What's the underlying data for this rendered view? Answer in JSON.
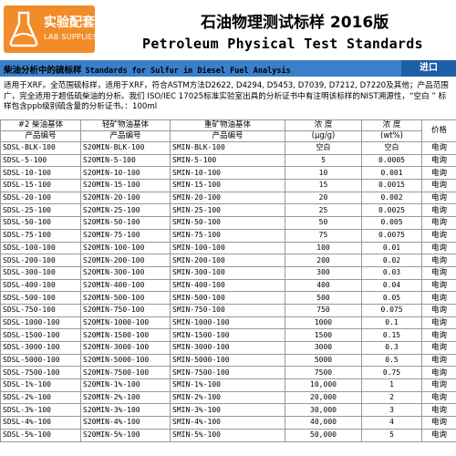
{
  "brand": {
    "name_cn": "实验配套",
    "name_en": "LAB SUPPLIES",
    "color": "#f28c28"
  },
  "header": {
    "title_cn": "石油物理测试标样 2016版",
    "title_en": "Petroleum Physical Test Standards"
  },
  "section": {
    "title_cn": "柴油分析中的硫标样",
    "title_en": "Standards for Sulfur in Diesel Fuel Analysis",
    "import_label": "进口",
    "bar_color": "#3a7fc9"
  },
  "description": "适用于XRF。全范围硫标样，适用于XRF，符合ASTM方法D2622, D4294, D5453, D7039, D7212, D7220及其他；产品范围广，完全适用于超低硫柴油的分析。我们 ISO/IEC 17025标准实验室出具的分析证书中有注明该标样的NIST溯源性，“空白 ” 标样包含ppb级别硫含量的分析证书。：100ml",
  "table": {
    "headers": {
      "col1_top": "#2 柴油基体",
      "col1_sub": "产品编号",
      "col2_top": "轻矿物油基体",
      "col2_sub": "产品编号",
      "col3_top": "重矿物油基体",
      "col3_sub": "产品编号",
      "col4_top": "浓 度",
      "col4_sub": "(μg/g)",
      "col5_top": "浓 度",
      "col5_sub": "(wt%)",
      "col6": "价格"
    },
    "rows": [
      [
        "SDSL-BLK-100",
        "S20MIN-BLK-100",
        "SMIN-BLK-100",
        "空白",
        "空白",
        "电询"
      ],
      [
        "SDSL-5-100",
        "S20MIN-5-100",
        "SMIN-5-100",
        "5",
        "0.0005",
        "电询"
      ],
      [
        "SDSL-10-100",
        "S20MIN-10-100",
        "SMIN-10-100",
        "10",
        "0.001",
        "电询"
      ],
      [
        "SDSL-15-100",
        "S20MIN-15-100",
        "SMIN-15-100",
        "15",
        "0.0015",
        "电询"
      ],
      [
        "SDSL-20-100",
        "S20MIN-20-100",
        "SMIN-20-100",
        "20",
        "0.002",
        "电询"
      ],
      [
        "SDSL-25-100",
        "S20MIN-25-100",
        "SMIN-25-100",
        "25",
        "0.0025",
        "电询"
      ],
      [
        "SDSL-50-100",
        "S20MIN-50-100",
        "SMIN-50-100",
        "50",
        "0.005",
        "电询"
      ],
      [
        "SDSL-75-100",
        "S20MIN-75-100",
        "SMIN-75-100",
        "75",
        "0.0075",
        "电询"
      ],
      [
        "SDSL-100-100",
        "S20MIN-100-100",
        "SMIN-100-100",
        "100",
        "0.01",
        "电询"
      ],
      [
        "SDSL-200-100",
        "S20MIN-200-100",
        "SMIN-200-100",
        "200",
        "0.02",
        "电询"
      ],
      [
        "SDSL-300-100",
        "S20MIN-300-100",
        "SMIN-300-100",
        "300",
        "0.03",
        "电询"
      ],
      [
        "SDSL-400-100",
        "S20MIN-400-100",
        "SMIN-400-100",
        "400",
        "0.04",
        "电询"
      ],
      [
        "SDSL-500-100",
        "S20MIN-500-100",
        "SMIN-500-100",
        "500",
        "0.05",
        "电询"
      ],
      [
        "SDSL-750-100",
        "S20MIN-750-100",
        "SMIN-750-100",
        "750",
        "0.075",
        "电询"
      ],
      [
        "SDSL-1000-100",
        "S20MIN-1000-100",
        "SMIN-1000-100",
        "1000",
        "0.1",
        "电询"
      ],
      [
        "SDSL-1500-100",
        "S20MIN-1500-100",
        "SMIN-1500-100",
        "1500",
        "0.15",
        "电询"
      ],
      [
        "SDSL-3000-100",
        "S20MIN-3000-100",
        "SMIN-3000-100",
        "3000",
        "0.3",
        "电询"
      ],
      [
        "SDSL-5000-100",
        "S20MIN-5000-100",
        "SMIN-5000-100",
        "5000",
        "0.5",
        "电询"
      ],
      [
        "SDSL-7500-100",
        "S20MIN-7500-100",
        "SMIN-7500-100",
        "7500",
        "0.75",
        "电询"
      ],
      [
        "SDSL-1%-100",
        "S20MIN-1%-100",
        "SMIN-1%-100",
        "10,000",
        "1",
        "电询"
      ],
      [
        "SDSL-2%-100",
        "S20MIN-2%-100",
        "SMIN-2%-100",
        "20,000",
        "2",
        "电询"
      ],
      [
        "SDSL-3%-100",
        "S20MIN-3%-100",
        "SMIN-3%-100",
        "30,000",
        "3",
        "电询"
      ],
      [
        "SDSL-4%-100",
        "S20MIN-4%-100",
        "SMIN-4%-100",
        "40,000",
        "4",
        "电询"
      ],
      [
        "SDSL-5%-100",
        "S20MIN-5%-100",
        "SMIN-5%-100",
        "50,000",
        "5",
        "电询"
      ]
    ]
  }
}
